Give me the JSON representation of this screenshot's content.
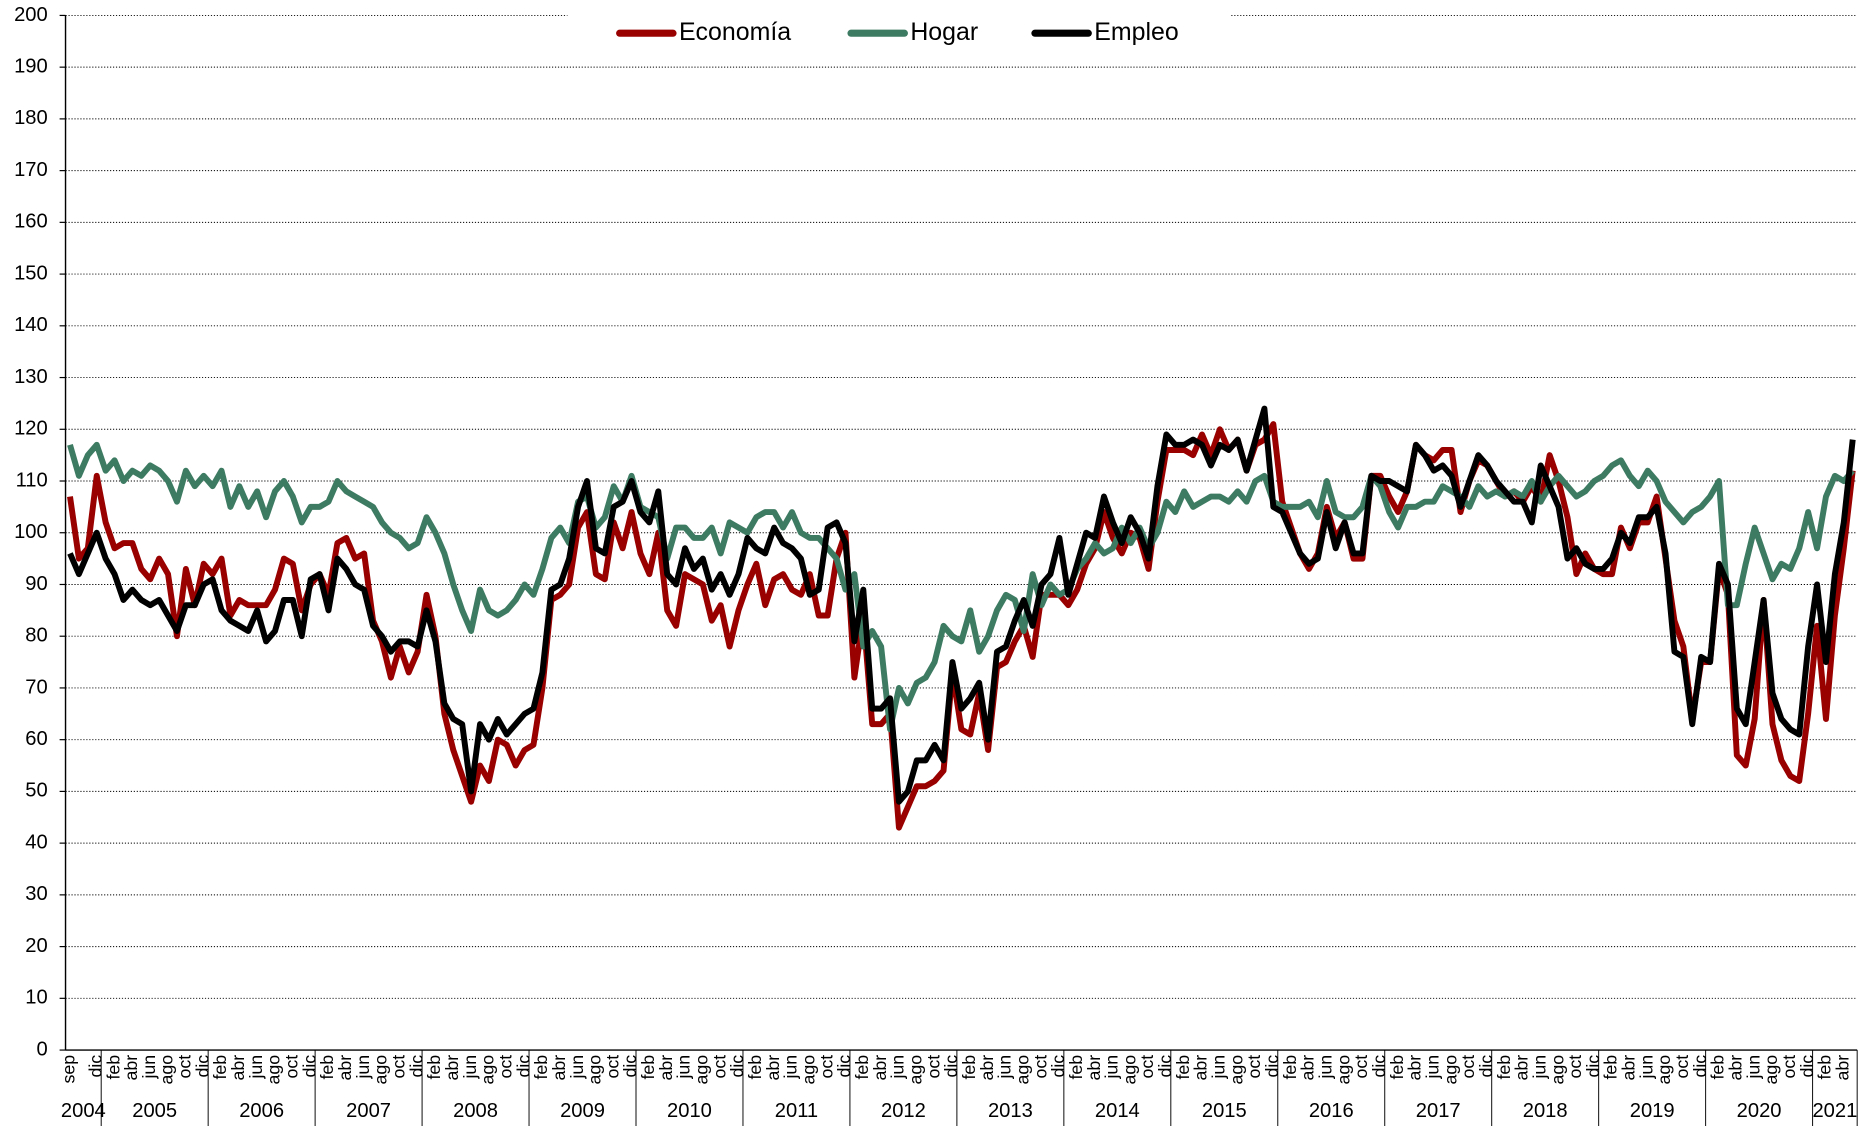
{
  "chart_data": {
    "type": "line",
    "legend": "top",
    "grid": true,
    "ylim": [
      0,
      200
    ],
    "yticks": [
      0,
      10,
      20,
      30,
      40,
      50,
      60,
      70,
      80,
      90,
      100,
      110,
      120,
      130,
      140,
      150,
      160,
      170,
      180,
      190,
      200
    ],
    "categories": [
      "sep",
      null,
      null,
      "dic",
      null,
      "feb",
      null,
      "abr",
      null,
      "jun",
      null,
      "ago",
      null,
      "oct",
      null,
      "dic",
      null,
      "feb",
      null,
      "abr",
      null,
      "jun",
      null,
      "ago",
      null,
      "oct",
      null,
      "dic",
      null,
      "feb",
      null,
      "abr",
      null,
      "jun",
      null,
      "ago",
      null,
      "oct",
      null,
      "dic",
      null,
      "feb",
      null,
      "abr",
      null,
      "jun",
      null,
      "ago",
      null,
      "oct",
      null,
      "dic",
      null,
      "feb",
      null,
      "abr",
      null,
      "jun",
      null,
      "ago",
      null,
      "oct",
      null,
      "dic",
      null,
      "feb",
      null,
      "abr",
      null,
      "jun",
      null,
      "ago",
      null,
      "oct",
      null,
      "dic",
      null,
      "feb",
      null,
      "abr",
      null,
      "jun",
      null,
      "ago",
      null,
      "oct",
      null,
      "dic",
      null,
      "feb",
      null,
      "abr",
      null,
      "jun",
      null,
      "ago",
      null,
      "oct",
      null,
      "dic",
      null,
      "feb",
      null,
      "abr",
      null,
      "jun",
      null,
      "ago",
      null,
      "oct",
      null,
      "dic",
      null,
      "feb",
      null,
      "abr",
      null,
      "jun",
      null,
      "ago",
      null,
      "oct",
      null,
      "dic",
      null,
      "feb",
      null,
      "abr",
      null,
      "jun",
      null,
      "ago",
      null,
      "oct",
      null,
      "dic",
      null,
      "feb",
      null,
      "abr",
      null,
      "jun",
      null,
      "ago",
      null,
      "oct",
      null,
      "dic",
      null,
      "feb",
      null,
      "abr",
      null,
      "jun",
      null,
      "ago",
      null,
      "oct",
      null,
      "dic",
      null,
      "feb",
      null,
      "abr",
      null,
      "jun",
      null,
      "ago",
      null,
      "oct",
      null,
      "dic",
      null,
      "feb",
      null,
      "abr",
      null,
      "jun",
      null,
      "ago",
      null,
      "oct",
      null,
      "dic",
      null,
      "feb",
      null,
      "abr",
      null,
      "jun",
      null,
      "ago",
      null,
      "oct",
      null,
      "dic",
      null,
      "feb",
      null,
      "abr",
      null
    ],
    "years": [
      "2004",
      null,
      null,
      null,
      "2005",
      null,
      null,
      null,
      null,
      null,
      null,
      null,
      null,
      null,
      null,
      null,
      "2006",
      null,
      null,
      null,
      null,
      null,
      null,
      null,
      null,
      null,
      null,
      null,
      "2007",
      null,
      null,
      null,
      null,
      null,
      null,
      null,
      null,
      null,
      null,
      null,
      "2008",
      null,
      null,
      null,
      null,
      null,
      null,
      null,
      null,
      null,
      null,
      null,
      "2009",
      null,
      null,
      null,
      null,
      null,
      null,
      null,
      null,
      null,
      null,
      null,
      "2010",
      null,
      null,
      null,
      null,
      null,
      null,
      null,
      null,
      null,
      null,
      null,
      "2011",
      null,
      null,
      null,
      null,
      null,
      null,
      null,
      null,
      null,
      null,
      null,
      "2012",
      null,
      null,
      null,
      null,
      null,
      null,
      null,
      null,
      null,
      null,
      null,
      "2013",
      null,
      null,
      null,
      null,
      null,
      null,
      null,
      null,
      null,
      null,
      null,
      "2014",
      null,
      null,
      null,
      null,
      null,
      null,
      null,
      null,
      null,
      null,
      null,
      "2015",
      null,
      null,
      null,
      null,
      null,
      null,
      null,
      null,
      null,
      null,
      null,
      "2016",
      null,
      null,
      null,
      null,
      null,
      null,
      null,
      null,
      null,
      null,
      null,
      "2017",
      null,
      null,
      null,
      null,
      null,
      null,
      null,
      null,
      null,
      null,
      null,
      "2018",
      null,
      null,
      null,
      null,
      null,
      null,
      null,
      null,
      null,
      null,
      null,
      "2019",
      null,
      null,
      null,
      null,
      null,
      null,
      null,
      null,
      null,
      null,
      null,
      "2020",
      null,
      null,
      null,
      null,
      null,
      null,
      null,
      null,
      null,
      null,
      null,
      "2021",
      null,
      null,
      null,
      null
    ],
    "series": [
      {
        "name": "Economía",
        "color": "#990000",
        "values": [
          107,
          95,
          97,
          111,
          102,
          97,
          98,
          98,
          93,
          91,
          95,
          92,
          80,
          93,
          86,
          94,
          92,
          95,
          84,
          87,
          86,
          86,
          86,
          89,
          95,
          94,
          85,
          90,
          92,
          88,
          98,
          99,
          95,
          96,
          83,
          79,
          72,
          78,
          73,
          77,
          88,
          80,
          65,
          58,
          53,
          48,
          55,
          52,
          60,
          59,
          55,
          58,
          59,
          70,
          87,
          88,
          90,
          101,
          104,
          92,
          91,
          102,
          97,
          104,
          96,
          92,
          100,
          85,
          82,
          92,
          91,
          90,
          83,
          86,
          78,
          85,
          90,
          94,
          86,
          91,
          92,
          89,
          88,
          92,
          84,
          84,
          95,
          100,
          72,
          84,
          63,
          63,
          65,
          43,
          47,
          51,
          51,
          52,
          54,
          73,
          62,
          61,
          69,
          58,
          74,
          75,
          79,
          82,
          76,
          88,
          88,
          88,
          86,
          89,
          94,
          97,
          104,
          99,
          96,
          100,
          99,
          93,
          106,
          116,
          116,
          116,
          115,
          119,
          115,
          120,
          116,
          118,
          112,
          117,
          118,
          121,
          106,
          101,
          96,
          93,
          96,
          105,
          99,
          102,
          95,
          95,
          111,
          111,
          107,
          104,
          108,
          117,
          115,
          114,
          116,
          116,
          104,
          110,
          114,
          113,
          110,
          107,
          108,
          106,
          109,
          106,
          115,
          110,
          103,
          92,
          96,
          93,
          92,
          92,
          101,
          97,
          102,
          102,
          107,
          95,
          83,
          78,
          64,
          75,
          75,
          93,
          88,
          57,
          55,
          64,
          87,
          63,
          56,
          53,
          52,
          65,
          82,
          64,
          84,
          97,
          112
        ]
      },
      {
        "name": "Hogar",
        "color": "#3e7b63",
        "values": [
          117,
          111,
          115,
          117,
          112,
          114,
          110,
          112,
          111,
          113,
          112,
          110,
          106,
          112,
          109,
          111,
          109,
          112,
          105,
          109,
          105,
          108,
          103,
          108,
          110,
          107,
          102,
          105,
          105,
          106,
          110,
          108,
          107,
          106,
          105,
          102,
          100,
          99,
          97,
          98,
          103,
          100,
          96,
          90,
          85,
          81,
          89,
          85,
          84,
          85,
          87,
          90,
          88,
          93,
          99,
          101,
          98,
          106,
          107,
          101,
          103,
          109,
          106,
          111,
          105,
          104,
          103,
          95,
          101,
          101,
          99,
          99,
          101,
          96,
          102,
          101,
          100,
          103,
          104,
          104,
          101,
          104,
          100,
          99,
          99,
          97,
          95,
          89,
          92,
          78,
          81,
          78,
          62,
          70,
          67,
          71,
          72,
          75,
          82,
          80,
          79,
          85,
          77,
          80,
          85,
          88,
          87,
          81,
          92,
          86,
          90,
          88,
          89,
          93,
          95,
          98,
          96,
          97,
          101,
          98,
          101,
          97,
          100,
          106,
          104,
          108,
          105,
          106,
          107,
          107,
          106,
          108,
          106,
          110,
          111,
          106,
          105,
          105,
          105,
          106,
          103,
          110,
          104,
          103,
          103,
          105,
          111,
          109,
          104,
          101,
          105,
          105,
          106,
          106,
          109,
          108,
          107,
          105,
          109,
          107,
          108,
          107,
          108,
          107,
          110,
          106,
          109,
          111,
          109,
          107,
          108,
          110,
          111,
          113,
          114,
          111,
          109,
          112,
          110,
          106,
          104,
          102,
          104,
          105,
          107,
          110,
          86,
          86,
          94,
          101,
          96,
          91,
          94,
          93,
          97,
          104,
          97,
          107,
          111,
          110,
          112
        ]
      },
      {
        "name": "Empleo",
        "color": "#000000",
        "values": [
          96,
          92,
          96,
          100,
          95,
          92,
          87,
          89,
          87,
          86,
          87,
          84,
          81,
          86,
          86,
          90,
          91,
          85,
          83,
          82,
          81,
          85,
          79,
          81,
          87,
          87,
          80,
          91,
          92,
          85,
          95,
          93,
          90,
          89,
          82,
          80,
          77,
          79,
          79,
          78,
          85,
          79,
          67,
          64,
          63,
          50,
          63,
          60,
          64,
          61,
          63,
          65,
          66,
          73,
          89,
          90,
          95,
          105,
          110,
          97,
          96,
          105,
          106,
          110,
          104,
          102,
          108,
          92,
          90,
          97,
          93,
          95,
          89,
          92,
          88,
          92,
          99,
          97,
          96,
          101,
          98,
          97,
          95,
          88,
          89,
          101,
          102,
          98,
          79,
          89,
          66,
          66,
          68,
          48,
          50,
          56,
          56,
          59,
          56,
          75,
          66,
          68,
          71,
          60,
          77,
          78,
          83,
          87,
          82,
          90,
          92,
          99,
          88,
          94,
          100,
          99,
          107,
          102,
          98,
          103,
          100,
          95,
          109,
          119,
          117,
          117,
          118,
          117,
          113,
          117,
          116,
          118,
          112,
          118,
          124,
          105,
          104,
          100,
          96,
          94,
          95,
          104,
          97,
          102,
          96,
          96,
          111,
          110,
          110,
          109,
          108,
          117,
          115,
          112,
          113,
          111,
          105,
          110,
          115,
          113,
          110,
          108,
          106,
          106,
          102,
          113,
          109,
          105,
          95,
          97,
          94,
          93,
          93,
          95,
          100,
          98,
          103,
          103,
          105,
          96,
          77,
          76,
          63,
          76,
          75,
          94,
          90,
          66,
          63,
          75,
          87,
          69,
          64,
          62,
          61,
          78,
          90,
          75,
          92,
          102,
          118
        ]
      }
    ]
  }
}
